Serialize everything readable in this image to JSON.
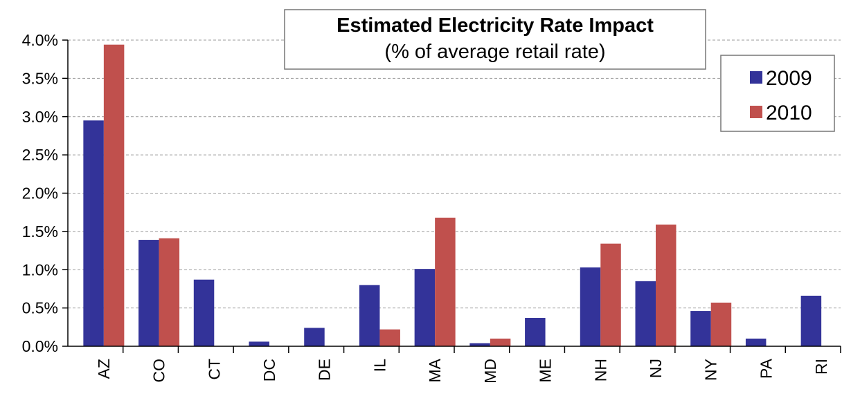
{
  "chart_data": {
    "type": "bar",
    "title": "Estimated Electricity Rate Impact",
    "subtitle": "(% of average retail rate)",
    "categories": [
      "AZ",
      "CO",
      "CT",
      "DC",
      "DE",
      "IL",
      "MA",
      "MD",
      "ME",
      "NH",
      "NJ",
      "NY",
      "PA",
      "RI"
    ],
    "series": [
      {
        "name": "2009",
        "color": "#333399",
        "values": [
          2.95,
          1.39,
          0.87,
          0.06,
          0.24,
          0.8,
          1.01,
          0.04,
          0.37,
          1.03,
          0.85,
          0.46,
          0.1,
          0.66
        ]
      },
      {
        "name": "2010",
        "color": "#c0504d",
        "values": [
          3.94,
          1.41,
          null,
          null,
          null,
          0.22,
          1.68,
          0.1,
          null,
          1.34,
          1.59,
          0.57,
          null,
          null
        ]
      }
    ],
    "ylim": [
      0,
      4.0
    ],
    "yticks": [
      {
        "value": 0,
        "label": "0.0%"
      },
      {
        "value": 0.5,
        "label": "0.5%"
      },
      {
        "value": 1.0,
        "label": "1.0%"
      },
      {
        "value": 1.5,
        "label": "1.5%"
      },
      {
        "value": 2.0,
        "label": "2.0%"
      },
      {
        "value": 2.5,
        "label": "2.5%"
      },
      {
        "value": 3.0,
        "label": "3.0%"
      },
      {
        "value": 3.5,
        "label": "3.5%"
      },
      {
        "value": 4.0,
        "label": "4.0%"
      }
    ],
    "grid": true,
    "legend": "upper right"
  }
}
